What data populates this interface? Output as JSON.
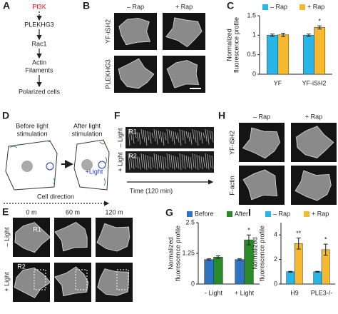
{
  "panel_a": {
    "label": "A",
    "nodes": [
      "PI3K",
      "PLEKHG3",
      "Rac1",
      "Actin",
      "Filaments",
      "Polarized cells"
    ]
  },
  "panel_b": {
    "label": "B",
    "columns": [
      "– Rap",
      "+ Rap"
    ],
    "rows": [
      "YF-iSH2",
      "PLEKHG3"
    ]
  },
  "panel_d": {
    "label": "D",
    "before": [
      "Before light",
      "stimulation"
    ],
    "after": [
      "After light",
      "stimulation"
    ],
    "marker": "+Light",
    "axis": "Cell direction"
  },
  "panel_f": {
    "label": "F",
    "regions": [
      "R1",
      "R2"
    ],
    "rows": [
      "– Light",
      "+ Light"
    ],
    "axis": "Time (120 min)"
  },
  "panel_h": {
    "label": "H",
    "columns": [
      "– Rap",
      "+ Rap"
    ],
    "rows": [
      "YF-iSH2",
      "F-actin"
    ]
  },
  "panel_e": {
    "label": "E",
    "columns": [
      "0 m",
      "60 m",
      "120 m"
    ],
    "rows": [
      "– Light",
      "+ Light"
    ],
    "regions": [
      "R1",
      "R2"
    ]
  },
  "chart_data": [
    {
      "type": "bar",
      "panel": "C",
      "ylabel": [
        "Normalized",
        "fluorescence profile"
      ],
      "categories": [
        "YF",
        "YF-iSH2"
      ],
      "series": [
        {
          "name": "– Rap",
          "color": "#29b5e8",
          "values": [
            1,
            1
          ],
          "errors": [
            0.03,
            0.03
          ]
        },
        {
          "name": "+ Rap",
          "color": "#f5b82e",
          "values": [
            1.01,
            1.2
          ],
          "errors": [
            0.04,
            0.04
          ]
        }
      ],
      "annotations": [
        null,
        "*"
      ],
      "ylim": [
        0,
        1.5
      ],
      "yticks": [
        0,
        0.5,
        1,
        1.5
      ]
    },
    {
      "type": "bar",
      "panel": "G",
      "ylabel": [
        "Normalized",
        "fluorescence profile"
      ],
      "categories": [
        "- Light",
        "+ Light"
      ],
      "series": [
        {
          "name": "Before",
          "color": "#2e74c0",
          "values": [
            1,
            1
          ],
          "errors": [
            0.03,
            0.03
          ]
        },
        {
          "name": "After",
          "color": "#2a8a2a",
          "values": [
            1.1,
            1.8
          ],
          "errors": [
            0.05,
            0.2
          ]
        }
      ],
      "annotations": [
        null,
        "*"
      ],
      "ylim": [
        0,
        2.5
      ],
      "yticks": [
        0,
        1.25,
        2.5
      ]
    },
    {
      "type": "bar",
      "panel": "I",
      "ylabel": [
        "Normalized",
        "fluorescence profile"
      ],
      "categories": [
        "H9",
        "PLE3-/-"
      ],
      "series": [
        {
          "name": "– Rap",
          "color": "#29b5e8",
          "values": [
            1,
            1
          ],
          "errors": [
            0.03,
            0.03
          ]
        },
        {
          "name": "+ Rap",
          "color": "#f5b82e",
          "values": [
            3.3,
            2.8
          ],
          "errors": [
            0.45,
            0.45
          ]
        }
      ],
      "annotations": [
        "**",
        "*"
      ],
      "ylim": [
        0,
        5
      ],
      "yticks": [
        0,
        2,
        4
      ]
    }
  ]
}
